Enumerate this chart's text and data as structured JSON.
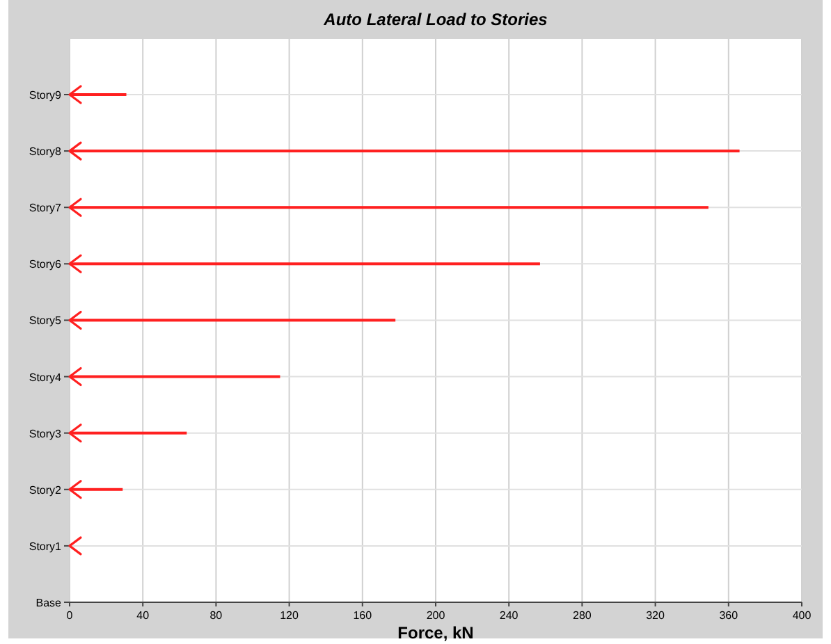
{
  "chart_data": {
    "type": "bar",
    "orientation": "horizontal",
    "title": "Auto Lateral Load to Stories",
    "xlabel": "Force, kN",
    "categories": [
      "Story9",
      "Story8",
      "Story7",
      "Story6",
      "Story5",
      "Story4",
      "Story3",
      "Story2",
      "Story1",
      "Base"
    ],
    "values": [
      31,
      366,
      349,
      257,
      178,
      115,
      64,
      29,
      0,
      null
    ],
    "color": "#ff2020",
    "xlim": [
      0,
      400
    ],
    "xticks": [
      0,
      40,
      80,
      120,
      160,
      200,
      240,
      280,
      320,
      360,
      400
    ],
    "grid": true
  }
}
